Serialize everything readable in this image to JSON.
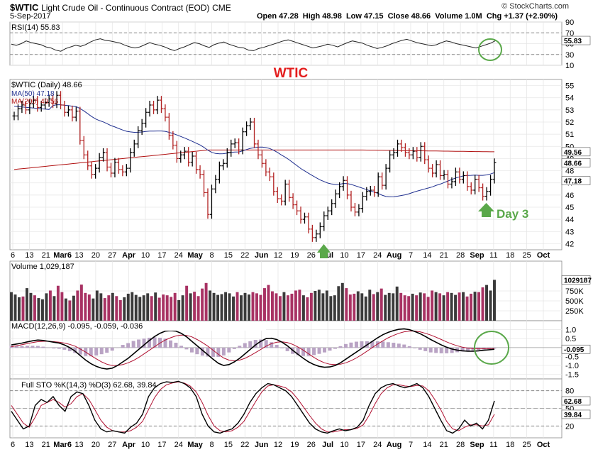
{
  "header": {
    "symbol": "$WTIC",
    "name": "Light Crude Oil - Continuous Contract (EOD)",
    "exchange": "CME",
    "date": "5-Sep-2017",
    "ohlc": "Open 47.28  High 48.98  Low 47.15  Close 48.66  Volume 1.0M  Chg +1.37 (+2.90%)",
    "brand": "© StockCharts.com"
  },
  "annotations": {
    "title": "WTIC",
    "day3": "Day 3"
  },
  "colors": {
    "up": "#000000",
    "down": "#b22222",
    "ma50": "#1f2f8f",
    "ma200": "#b01010",
    "vol_down": "#a83263",
    "circle": "#5aa84a",
    "annot_red": "#e31d1d",
    "annot_green": "#5aa84a"
  },
  "x_labels": [
    "6",
    "13",
    "21",
    "Mar6",
    "13",
    "20",
    "27",
    "Apr",
    "10",
    "17",
    "24",
    "May",
    "8",
    "15",
    "22",
    "Jun",
    "12",
    "19",
    "26",
    "Jul",
    "10",
    "17",
    "24",
    "Aug",
    "7",
    "14",
    "21",
    "28",
    "Sep",
    "11",
    "18",
    "25",
    "Oct"
  ],
  "chart_data": [
    {
      "type": "line",
      "name": "rsi",
      "title": "RSI(14) 55.83",
      "ylim": [
        10,
        90
      ],
      "y_ticks": [
        90,
        70,
        50,
        30,
        10
      ],
      "last_value": "55.83",
      "values": [
        49,
        47,
        50,
        55,
        52,
        50,
        48,
        44,
        42,
        38,
        36,
        41,
        44,
        47,
        45,
        48,
        53,
        57,
        59,
        56,
        55,
        53,
        51,
        47,
        44,
        42,
        44,
        48,
        52,
        49,
        47,
        44,
        40,
        37,
        41,
        44,
        48,
        52,
        50,
        46,
        43,
        48,
        51,
        53,
        49,
        46,
        43,
        42,
        38,
        37,
        41,
        43,
        46,
        49,
        52,
        55,
        57,
        54,
        51,
        48,
        45,
        42,
        44,
        46,
        49,
        47,
        44,
        48,
        52,
        55,
        53,
        51,
        47,
        44,
        41,
        43,
        46,
        50,
        53,
        56,
        58,
        55,
        52,
        50,
        48,
        46,
        48,
        52,
        55,
        53,
        50,
        48,
        46,
        44,
        42,
        45,
        48,
        51,
        55.83
      ]
    },
    {
      "type": "ohlc",
      "name": "price",
      "series_label": "$WTIC (Daily) 48.66",
      "ylim": [
        41.5,
        55.5
      ],
      "y_ticks": [
        55,
        54,
        53,
        52,
        51,
        50,
        49,
        48,
        47,
        46,
        45,
        44,
        43,
        42
      ],
      "ma50": {
        "label": "MA(50) 47.18",
        "last": "47.18"
      },
      "ma200": {
        "label": "MA(200) 49.56",
        "last": "49.56"
      },
      "close_tag": "48.66",
      "closes": [
        52.5,
        53.1,
        53.4,
        53.0,
        53.5,
        53.8,
        53.2,
        53.4,
        53.6,
        53.9,
        53.5,
        54.2,
        53.4,
        52.8,
        53.0,
        52.4,
        52.9,
        50.5,
        49.3,
        48.4,
        47.7,
        48.2,
        49.1,
        49.5,
        48.3,
        47.8,
        48.7,
        48.1,
        47.9,
        48.2,
        49.5,
        50.2,
        51.3,
        51.9,
        52.8,
        53.4,
        53.0,
        53.8,
        53.1,
        52.4,
        50.9,
        50.1,
        49.0,
        49.3,
        49.6,
        48.7,
        49.2,
        48.1,
        47.7,
        46.2,
        44.4,
        46.5,
        47.3,
        48.4,
        48.6,
        49.5,
        50.2,
        50.3,
        49.7,
        51.2,
        51.7,
        52.0,
        50.2,
        49.3,
        48.6,
        47.9,
        47.5,
        46.3,
        45.7,
        45.5,
        46.9,
        45.8,
        45.2,
        44.7,
        44.0,
        44.2,
        43.2,
        42.5,
        42.8,
        43.4,
        44.3,
        44.7,
        45.3,
        46.1,
        46.7,
        47.2,
        46.0,
        45.0,
        44.6,
        44.9,
        45.9,
        46.3,
        46.4,
        46.2,
        47.5,
        46.8,
        48.2,
        49.3,
        49.5,
        50.2,
        49.9,
        49.5,
        49.3,
        49.6,
        49.1,
        50.0,
        48.9,
        48.2,
        47.8,
        48.5,
        47.6,
        47.7,
        46.9,
        47.1,
        47.9,
        47.3,
        47.6,
        46.7,
        46.4,
        47.3,
        46.6,
        45.9,
        46.3,
        47.3,
        48.66
      ]
    },
    {
      "type": "bar",
      "name": "volume",
      "title": "Volume 1,029,187",
      "ylim": [
        0,
        1250000
      ],
      "y_ticks": [
        250000,
        500000,
        750000
      ],
      "y_tick_labels": [
        "250K",
        "500K",
        "750K"
      ],
      "last_tag": "1029187",
      "values": [
        720,
        660,
        590,
        610,
        820,
        700,
        640,
        570,
        540,
        690,
        760,
        620,
        880,
        720,
        560,
        510,
        630,
        760,
        910,
        700,
        660,
        560,
        760,
        690,
        570,
        640,
        700,
        620,
        520,
        590,
        680,
        720,
        650,
        600,
        640,
        690,
        620,
        710,
        580,
        660,
        640,
        600,
        700,
        520,
        640,
        880,
        690,
        730,
        620,
        810,
        950,
        760,
        700,
        650,
        670,
        720,
        690,
        610,
        720,
        640,
        700,
        660,
        720,
        690,
        650,
        820,
        900,
        740,
        690,
        620,
        720,
        640,
        680,
        760,
        780,
        640,
        590,
        700,
        750,
        780,
        690,
        760,
        620,
        640,
        870,
        950,
        820,
        660,
        680,
        740,
        690,
        610,
        780,
        670,
        720,
        810,
        650,
        700,
        690,
        860,
        700,
        640,
        620,
        680,
        640,
        710,
        690,
        600,
        760,
        720,
        690,
        640,
        720,
        700,
        650,
        710,
        720,
        610,
        680,
        730,
        720,
        840,
        900,
        760,
        1029
      ]
    },
    {
      "type": "line",
      "name": "macd",
      "title": "MACD(12,26,9) -0.095, -0.059, -0.036",
      "ylim": [
        -1.75,
        1.5
      ],
      "y_ticks": [
        1.0,
        0.5,
        -0.5,
        -1.0,
        -1.5
      ],
      "y_tick_labels": [
        "1.0",
        "0.5",
        "-0.5",
        "-1.0",
        "-1.5"
      ],
      "last_tag": "-0.095",
      "macd": [
        0.15,
        0.2,
        0.25,
        0.32,
        0.38,
        0.42,
        0.4,
        0.35,
        0.3,
        0.25,
        0.15,
        0.0,
        -0.2,
        -0.45,
        -0.7,
        -0.9,
        -1.05,
        -1.15,
        -1.2,
        -1.15,
        -1.0,
        -0.8,
        -0.6,
        -0.35,
        -0.1,
        0.15,
        0.4,
        0.62,
        0.8,
        0.92,
        0.95,
        0.92,
        0.8,
        0.6,
        0.35,
        0.1,
        -0.15,
        -0.4,
        -0.65,
        -0.88,
        -1.0,
        -0.95,
        -0.8,
        -0.6,
        -0.35,
        -0.1,
        0.15,
        0.35,
        0.5,
        0.52,
        0.45,
        0.3,
        0.1,
        -0.15,
        -0.38,
        -0.6,
        -0.8,
        -0.95,
        -1.05,
        -1.1,
        -1.08,
        -1.0,
        -0.85,
        -0.65,
        -0.45,
        -0.25,
        -0.05,
        0.15,
        0.35,
        0.55,
        0.72,
        0.85,
        0.95,
        1.02,
        1.05,
        1.0,
        0.9,
        0.78,
        0.62,
        0.45,
        0.3,
        0.15,
        0.02,
        -0.08,
        -0.14,
        -0.18,
        -0.2,
        -0.2,
        -0.18,
        -0.15,
        -0.12,
        -0.095
      ],
      "signal": [
        0.05,
        0.1,
        0.16,
        0.22,
        0.28,
        0.33,
        0.35,
        0.35,
        0.33,
        0.3,
        0.25,
        0.18,
        0.08,
        -0.08,
        -0.25,
        -0.45,
        -0.63,
        -0.8,
        -0.93,
        -1.0,
        -1.0,
        -0.95,
        -0.85,
        -0.72,
        -0.55,
        -0.35,
        -0.15,
        0.05,
        0.25,
        0.42,
        0.55,
        0.65,
        0.7,
        0.68,
        0.6,
        0.45,
        0.28,
        0.08,
        -0.15,
        -0.38,
        -0.58,
        -0.7,
        -0.74,
        -0.7,
        -0.6,
        -0.45,
        -0.28,
        -0.1,
        0.08,
        0.22,
        0.3,
        0.32,
        0.28,
        0.18,
        0.03,
        -0.15,
        -0.35,
        -0.55,
        -0.72,
        -0.85,
        -0.93,
        -0.95,
        -0.93,
        -0.85,
        -0.73,
        -0.58,
        -0.4,
        -0.2,
        0.0,
        0.2,
        0.38,
        0.55,
        0.68,
        0.8,
        0.88,
        0.92,
        0.92,
        0.88,
        0.8,
        0.7,
        0.58,
        0.45,
        0.32,
        0.2,
        0.1,
        0.02,
        -0.03,
        -0.06,
        -0.07,
        -0.065,
        -0.06,
        -0.059
      ]
    },
    {
      "type": "line",
      "name": "stochastics",
      "title": "Full STO %K(14,3) %D(3) 62.68, 39.84",
      "ylim": [
        0,
        100
      ],
      "y_ticks": [
        80,
        50,
        20
      ],
      "k_tag": "62.68",
      "d_tag": "39.84",
      "k": [
        45,
        30,
        15,
        20,
        55,
        65,
        60,
        70,
        55,
        45,
        70,
        78,
        75,
        55,
        30,
        15,
        10,
        12,
        10,
        8,
        18,
        25,
        40,
        70,
        85,
        92,
        95,
        94,
        96,
        92,
        85,
        70,
        40,
        20,
        10,
        8,
        12,
        15,
        25,
        40,
        60,
        75,
        85,
        92,
        90,
        85,
        80,
        70,
        55,
        40,
        25,
        15,
        10,
        8,
        12,
        15,
        12,
        14,
        18,
        30,
        55,
        75,
        85,
        90,
        92,
        88,
        85,
        88,
        92,
        85,
        70,
        50,
        30,
        12,
        8,
        15,
        30,
        20,
        25,
        15,
        30,
        62.68
      ],
      "d": [
        55,
        40,
        25,
        18,
        35,
        55,
        60,
        65,
        60,
        52,
        58,
        70,
        75,
        65,
        48,
        30,
        18,
        12,
        10,
        10,
        12,
        18,
        28,
        48,
        68,
        82,
        90,
        93,
        95,
        93,
        88,
        78,
        60,
        38,
        20,
        12,
        10,
        12,
        18,
        28,
        45,
        62,
        78,
        88,
        90,
        88,
        85,
        78,
        66,
        52,
        38,
        25,
        15,
        10,
        10,
        12,
        14,
        14,
        16,
        22,
        38,
        58,
        75,
        85,
        90,
        90,
        88,
        87,
        89,
        88,
        80,
        65,
        48,
        28,
        15,
        12,
        18,
        22,
        22,
        20,
        22,
        39.84
      ]
    }
  ]
}
